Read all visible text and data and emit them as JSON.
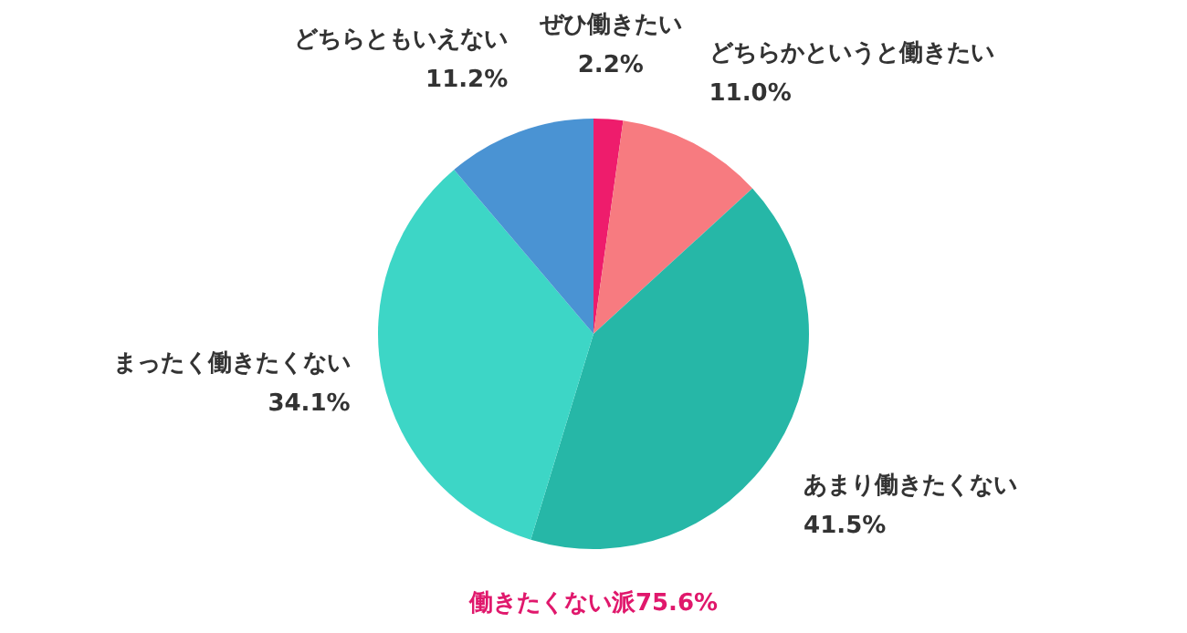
{
  "chart_data": {
    "type": "pie",
    "categories": [
      "ぜひ働きたい",
      "どちらかというと働きたい",
      "あまり働きたくない",
      "まったく働きたくない",
      "どちらともいえない"
    ],
    "values": [
      2.2,
      11.0,
      41.5,
      34.1,
      11.2
    ],
    "value_labels": [
      "2.2%",
      "11.0%",
      "41.5%",
      "34.1%",
      "11.2%"
    ],
    "colors": [
      "#ee1c6c",
      "#f77b80",
      "#26b7a7",
      "#3dd6c6",
      "#4a93d3"
    ],
    "annotations": [
      "働きたくない派75.6%"
    ],
    "legend": false
  }
}
